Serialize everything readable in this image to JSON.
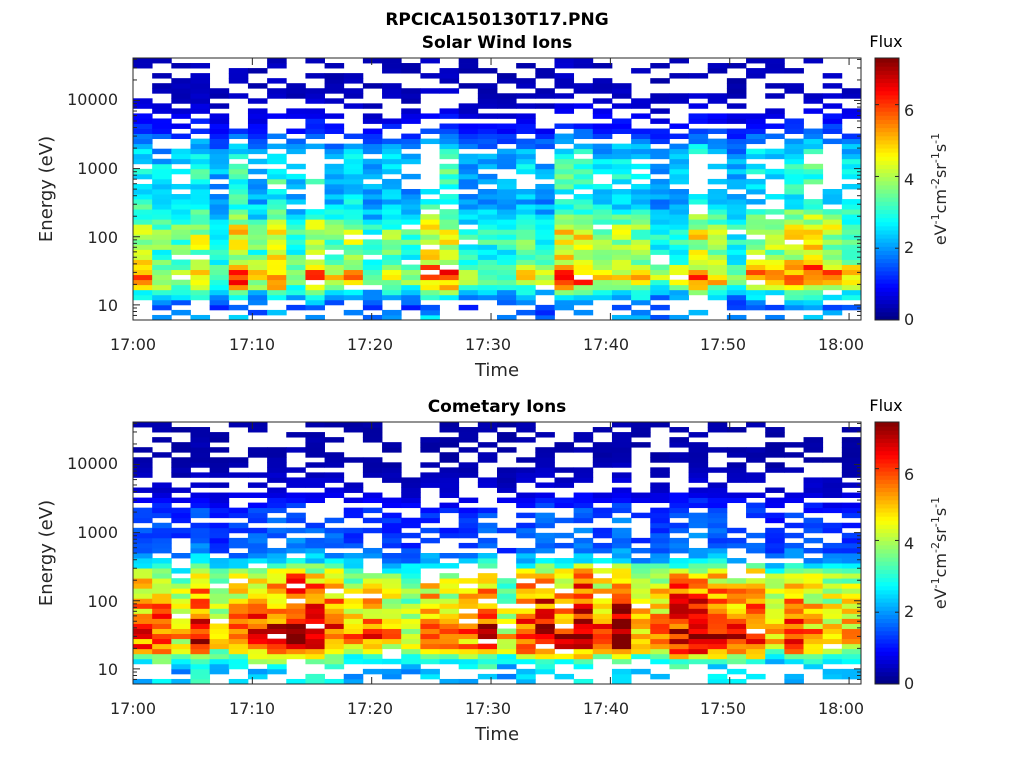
{
  "figure_title": "RPCICA150130T17.PNG",
  "chart_data": [
    {
      "type": "heatmap",
      "title": "Solar Wind Ions",
      "xlabel": "Time",
      "ylabel": "Energy (eV)",
      "x_ticks": [
        "17:00",
        "17:10",
        "17:20",
        "17:30",
        "17:40",
        "17:50",
        "18:00"
      ],
      "y_ticks": [
        "10",
        "100",
        "1000",
        "10000"
      ],
      "y_scale": "log",
      "xlim": [
        "17:00",
        "18:01"
      ],
      "ylim": [
        6,
        42000
      ],
      "colorbar": {
        "title": "Flux",
        "label": "eV-1cm-2sr-1s-1",
        "ticks": [
          "0",
          "2",
          "4",
          "6"
        ],
        "range": [
          0,
          7.3
        ]
      },
      "profile": [
        {
          "energy": 30000,
          "flux": 0.4
        },
        {
          "energy": 20000,
          "flux": 0.4
        },
        {
          "energy": 10000,
          "flux": 0.5
        },
        {
          "energy": 5000,
          "flux": 0.9
        },
        {
          "energy": 3500,
          "flux": 1.3
        },
        {
          "energy": 2000,
          "flux": 2.2
        },
        {
          "energy": 1500,
          "flux": 2.5
        },
        {
          "energy": 1000,
          "flux": 2.7
        },
        {
          "energy": 600,
          "flux": 2.6
        },
        {
          "energy": 350,
          "flux": 2.4
        },
        {
          "energy": 200,
          "flux": 3.0
        },
        {
          "energy": 130,
          "flux": 3.8
        },
        {
          "energy": 90,
          "flux": 3.8
        },
        {
          "energy": 60,
          "flux": 3.5
        },
        {
          "energy": 40,
          "flux": 4.0
        },
        {
          "energy": 28,
          "flux": 5.0
        },
        {
          "energy": 20,
          "flux": 4.4
        },
        {
          "energy": 15,
          "flux": 2.8
        },
        {
          "energy": 9,
          "flux": 1.5
        },
        {
          "energy": 7,
          "flux": 2.0
        }
      ]
    },
    {
      "type": "heatmap",
      "title": "Cometary Ions",
      "xlabel": "Time",
      "ylabel": "Energy (eV)",
      "x_ticks": [
        "17:00",
        "17:10",
        "17:20",
        "17:30",
        "17:40",
        "17:50",
        "18:00"
      ],
      "y_ticks": [
        "10",
        "100",
        "1000",
        "10000"
      ],
      "y_scale": "log",
      "xlim": [
        "17:00",
        "18:01"
      ],
      "ylim": [
        6,
        42000
      ],
      "colorbar": {
        "title": "Flux",
        "label": "eV-1cm-2sr-1s-1",
        "ticks": [
          "0",
          "2",
          "4",
          "6"
        ],
        "range": [
          0,
          7.3
        ]
      },
      "profile": [
        {
          "energy": 12000,
          "flux": 0.3
        },
        {
          "energy": 4000,
          "flux": 0.6
        },
        {
          "energy": 2000,
          "flux": 1.3
        },
        {
          "energy": 1000,
          "flux": 1.4
        },
        {
          "energy": 600,
          "flux": 1.5
        },
        {
          "energy": 400,
          "flux": 2.2
        },
        {
          "energy": 250,
          "flux": 4.2
        },
        {
          "energy": 150,
          "flux": 4.8
        },
        {
          "energy": 100,
          "flux": 5.0
        },
        {
          "energy": 70,
          "flux": 5.2
        },
        {
          "energy": 45,
          "flux": 5.5
        },
        {
          "energy": 30,
          "flux": 6.0
        },
        {
          "energy": 20,
          "flux": 5.3
        },
        {
          "energy": 15,
          "flux": 3.6
        },
        {
          "energy": 10,
          "flux": 2.2
        },
        {
          "energy": 7,
          "flux": 2.5
        }
      ]
    }
  ]
}
